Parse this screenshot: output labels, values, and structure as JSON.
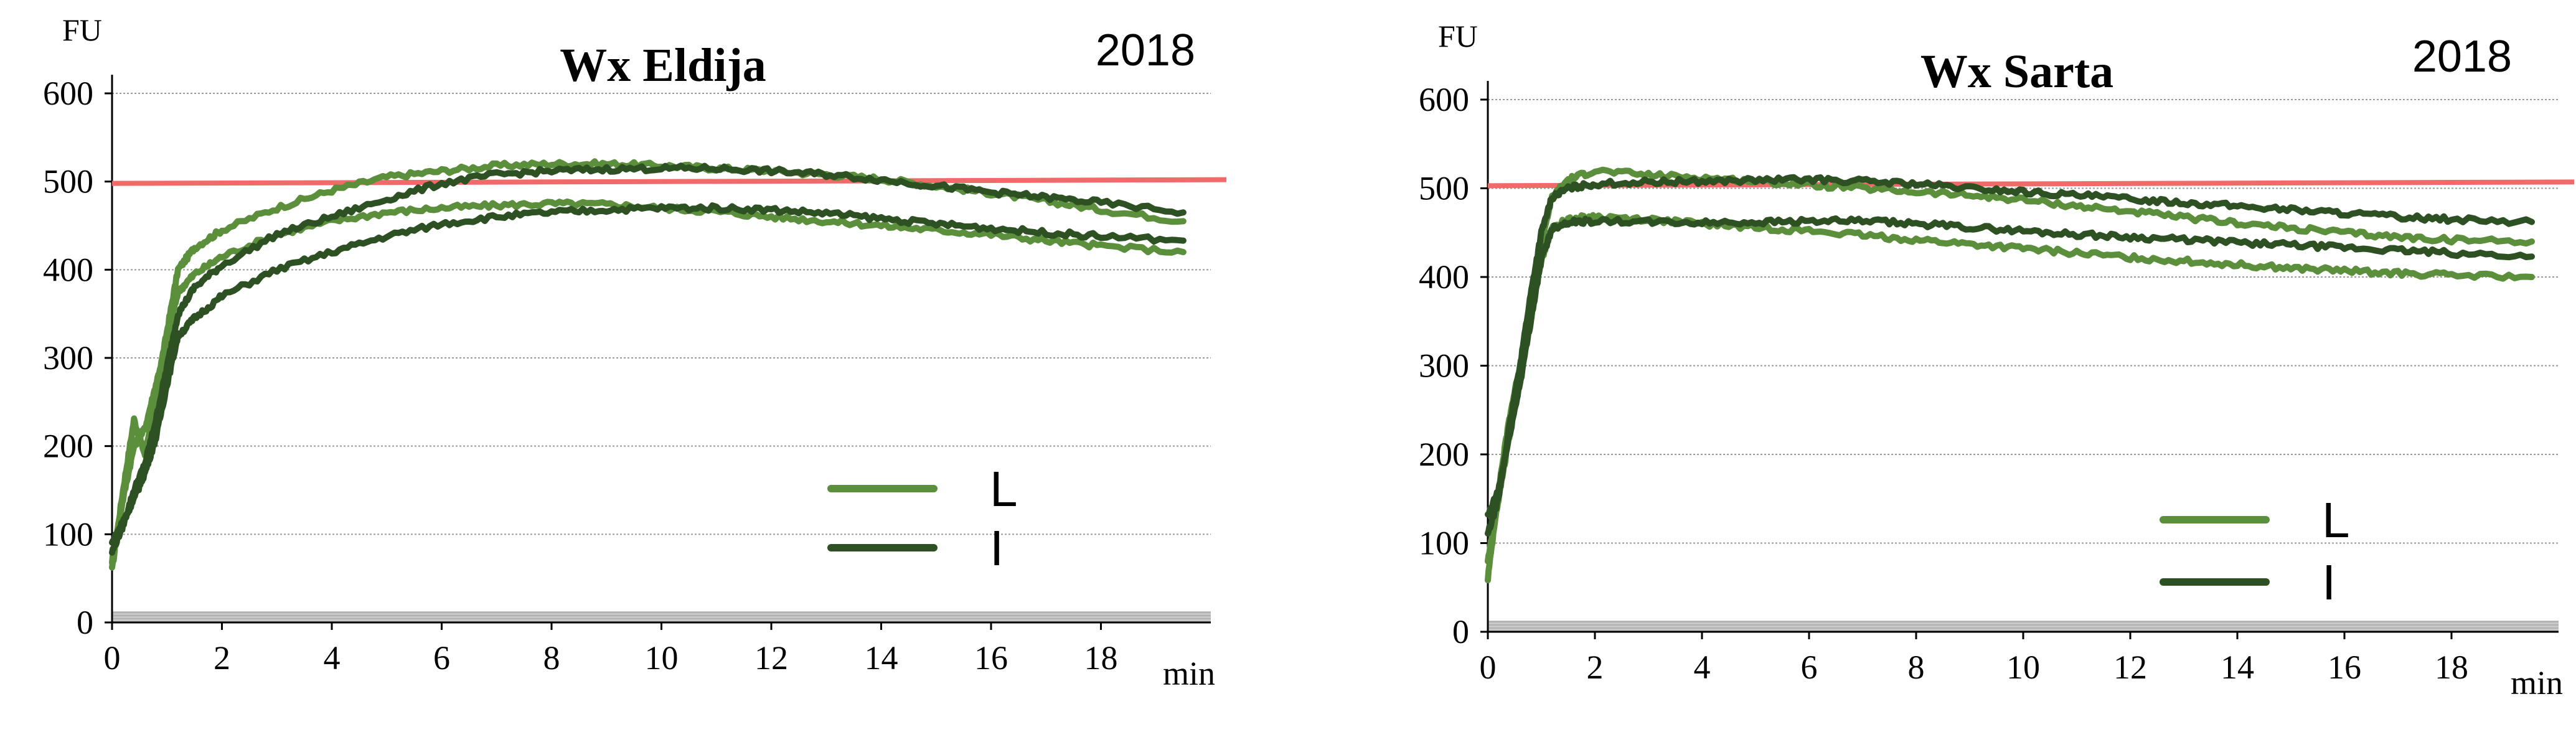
{
  "colors": {
    "series_L": "#5b8f3c",
    "series_I": "#2e5124",
    "reference_line": "#f06a6a",
    "grid": "#9a9a9a",
    "axis": "#000000",
    "baseline_band": "#c8c8c8"
  },
  "chart_data": [
    {
      "type": "line",
      "title": "Wx Eldija",
      "year_label": "2018",
      "ylabel": "FU",
      "xlabel": "min",
      "xlim": [
        0,
        20
      ],
      "ylim": [
        0,
        600
      ],
      "x_ticks": [
        "0",
        "2",
        "4",
        "6",
        "8",
        "10",
        "12",
        "14",
        "16",
        "18"
      ],
      "y_ticks": [
        "0",
        "100",
        "200",
        "300",
        "400",
        "500",
        "600"
      ],
      "grid": true,
      "reference_line": 500,
      "legend": {
        "placement": "bottom-right",
        "entries": [
          "L",
          "I"
        ]
      },
      "series": [
        {
          "name": "L",
          "x": [
            0,
            0.2,
            0.4,
            0.6,
            0.8,
            1,
            1.2,
            1.5,
            2,
            3,
            4,
            5,
            6,
            7,
            8,
            9,
            10,
            11,
            12,
            13,
            14,
            15,
            16,
            17,
            18,
            19.5
          ],
          "y": [
            60,
            150,
            230,
            190,
            260,
            330,
            400,
            425,
            445,
            470,
            490,
            505,
            512,
            518,
            520,
            520,
            518,
            515,
            512,
            508,
            503,
            495,
            487,
            478,
            468,
            455
          ]
        },
        {
          "name": "L",
          "x": [
            0,
            0.2,
            0.4,
            0.6,
            0.8,
            1,
            1.2,
            1.5,
            2,
            3,
            4,
            5,
            6,
            7,
            8,
            9,
            10,
            11,
            12,
            13,
            14,
            15,
            16,
            17,
            18,
            19.5
          ],
          "y": [
            70,
            140,
            200,
            220,
            270,
            320,
            375,
            395,
            415,
            440,
            455,
            465,
            470,
            473,
            475,
            474,
            470,
            466,
            460,
            455,
            450,
            445,
            440,
            433,
            427,
            420
          ]
        },
        {
          "name": "I",
          "x": [
            0,
            0.2,
            0.4,
            0.6,
            0.8,
            1,
            1.2,
            1.5,
            2,
            3,
            4,
            5,
            6,
            7,
            8,
            9,
            10,
            11,
            12,
            13,
            14,
            15,
            16,
            17,
            18,
            19.5
          ],
          "y": [
            80,
            110,
            150,
            180,
            230,
            290,
            350,
            380,
            405,
            440,
            460,
            480,
            498,
            508,
            512,
            514,
            515,
            515,
            512,
            508,
            502,
            495,
            488,
            482,
            476,
            465
          ]
        },
        {
          "name": "I",
          "x": [
            0,
            0.2,
            0.4,
            0.6,
            0.8,
            1,
            1.2,
            1.5,
            2,
            3,
            4,
            5,
            6,
            7,
            8,
            9,
            10,
            11,
            12,
            13,
            14,
            15,
            16,
            17,
            18,
            19.5
          ],
          "y": [
            90,
            115,
            140,
            170,
            210,
            270,
            325,
            345,
            370,
            400,
            420,
            438,
            452,
            460,
            465,
            468,
            470,
            470,
            468,
            464,
            458,
            452,
            447,
            442,
            438,
            433
          ]
        }
      ]
    },
    {
      "type": "line",
      "title": "Wx Sarta",
      "year_label": "2018",
      "ylabel": "FU",
      "xlabel": "min",
      "xlim": [
        0,
        20
      ],
      "ylim": [
        0,
        600
      ],
      "x_ticks": [
        "0",
        "2",
        "4",
        "6",
        "8",
        "10",
        "12",
        "14",
        "16",
        "18"
      ],
      "y_ticks": [
        "0",
        "100",
        "200",
        "300",
        "400",
        "500",
        "600"
      ],
      "grid": true,
      "reference_line": 505,
      "legend": {
        "placement": "bottom-right",
        "entries": [
          "L",
          "I"
        ]
      },
      "series": [
        {
          "name": "L",
          "x": [
            0,
            0.2,
            0.4,
            0.6,
            0.8,
            1,
            1.2,
            1.5,
            2,
            3,
            4,
            5,
            6,
            7,
            8,
            9,
            10,
            11,
            12,
            13,
            14,
            15,
            16,
            17,
            18,
            19.5
          ],
          "y": [
            60,
            160,
            240,
            300,
            370,
            440,
            490,
            510,
            520,
            515,
            512,
            508,
            504,
            500,
            496,
            492,
            487,
            480,
            474,
            467,
            461,
            455,
            450,
            445,
            442,
            440
          ]
        },
        {
          "name": "L",
          "x": [
            0,
            0.2,
            0.4,
            0.6,
            0.8,
            1,
            1.2,
            1.5,
            2,
            3,
            4,
            5,
            6,
            7,
            8,
            9,
            10,
            11,
            12,
            13,
            14,
            15,
            16,
            17,
            18,
            19.5
          ],
          "y": [
            80,
            150,
            220,
            290,
            360,
            420,
            455,
            465,
            468,
            465,
            460,
            456,
            452,
            447,
            442,
            437,
            432,
            427,
            422,
            418,
            414,
            410,
            407,
            404,
            402,
            400
          ]
        },
        {
          "name": "I",
          "x": [
            0,
            0.2,
            0.4,
            0.6,
            0.8,
            1,
            1.2,
            1.5,
            2,
            3,
            4,
            5,
            6,
            7,
            8,
            9,
            10,
            11,
            12,
            13,
            14,
            15,
            16,
            17,
            18,
            19.5
          ],
          "y": [
            110,
            150,
            230,
            300,
            380,
            450,
            490,
            500,
            505,
            507,
            508,
            509,
            510,
            508,
            505,
            500,
            496,
            492,
            488,
            484,
            480,
            476,
            472,
            468,
            465,
            462
          ]
        },
        {
          "name": "I",
          "x": [
            0,
            0.2,
            0.4,
            0.6,
            0.8,
            1,
            1.2,
            1.5,
            2,
            3,
            4,
            5,
            6,
            7,
            8,
            9,
            10,
            11,
            12,
            13,
            14,
            15,
            16,
            17,
            18,
            19.5
          ],
          "y": [
            130,
            160,
            220,
            280,
            350,
            420,
            455,
            462,
            463,
            462,
            461,
            462,
            463,
            463,
            460,
            456,
            452,
            448,
            445,
            442,
            439,
            436,
            433,
            430,
            427,
            423
          ]
        }
      ]
    }
  ]
}
